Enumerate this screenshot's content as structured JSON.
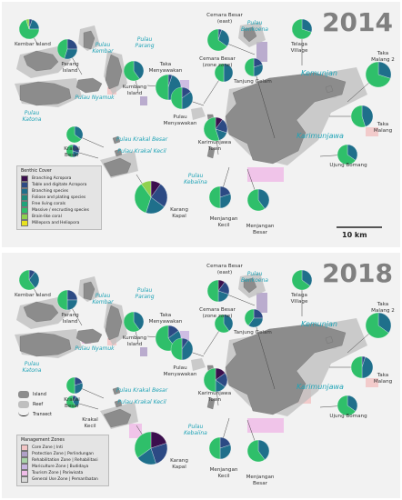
{
  "panels": [
    {
      "year": "2014"
    },
    {
      "year": "2018"
    }
  ],
  "scale_label": "10 km",
  "colors": {
    "branching_acropora": "#3b0f4d",
    "table_digitate_acropora": "#2c4a84",
    "branching_species": "#1f6f8b",
    "foliose_plating": "#1f8a7a",
    "free_living": "#1fa37a",
    "massive_encrusting": "#2fbf6a",
    "brain_like": "#8fd14f",
    "millepora_heliopora": "#e8e21f",
    "land": "#8c8c8c",
    "reef": "#bfbfbf",
    "core_zone": "#f2c4c4",
    "protection_zone": "#b0a0c8",
    "rehabilitation_zone": "#a8d4a8",
    "mariculture_zone": "#c8b4e0",
    "tourism_zone": "#f0bce8",
    "general_use_zone": "#d8d8d8"
  },
  "benthic_legend": {
    "title": "Benthic Cover",
    "items": [
      "Branching Acropora",
      "Table and digitate Acropora",
      "Branching species",
      "Foliose and plating species",
      "Free living corals",
      "Massive / encrusting species",
      "Brain-like coral",
      "Millepora and Heliopora"
    ]
  },
  "map_legend": {
    "items": [
      "Island",
      "Reef",
      "Transect"
    ]
  },
  "zones_legend": {
    "title": "Management Zones",
    "items": [
      "Core Zone | Inti",
      "Protection Zone | Perlindungan",
      "Rehabilitation Zone | Rehabilitasi",
      "Mariculture Zone | Budidaya",
      "Tourism Zone | Pariwisata",
      "General Use Zone | Pemanfaatan"
    ]
  },
  "sites": [
    "Kembar Island",
    "Parang Island",
    "Kumbang Island",
    "Taka Menyawakan",
    "Cemara Besar (east)",
    "Cemara Besar (zone zone)",
    "Pulau Menyawakan",
    "Tanjung Gelam",
    "Telaga Village",
    "Taka Malang 2",
    "Taka Malang",
    "Karimunjawa Town",
    "Krakal Besar",
    "Krakal Kecil",
    "Karang Kapal",
    "Menjangan Kecil",
    "Menjangan Besar",
    "Ujung Bomang"
  ],
  "islands": [
    "Pulau Kembar",
    "Pulau Parang",
    "Pulau Nyamuk",
    "Pulau Katona",
    "Pulau Krakal Besar",
    "Pulau Krakal Kecil",
    "Pulau Kebaiina",
    "Pulau Benkoena",
    "Kemunjan",
    "Karimunjawa"
  ],
  "chart_data": [
    {
      "type": "pie",
      "title": "2014",
      "categories": [
        "Branching Acropora",
        "Table and digitate Acropora",
        "Branching species",
        "Foliose and plating species",
        "Free living corals",
        "Massive / encrusting species",
        "Brain-like coral",
        "Millepora and Heliopora"
      ],
      "pies": [
        {
          "site": "Kembar Island",
          "values": [
            0,
            5,
            20,
            0,
            0,
            70,
            5,
            0
          ]
        },
        {
          "site": "Parang Island",
          "values": [
            0,
            25,
            30,
            0,
            0,
            45,
            0,
            0
          ]
        },
        {
          "site": "Kumbang Island",
          "values": [
            0,
            0,
            40,
            0,
            0,
            60,
            0,
            0
          ]
        },
        {
          "site": "Taka Menyawakan",
          "values": [
            0,
            5,
            45,
            0,
            0,
            50,
            0,
            0
          ]
        },
        {
          "site": "Cemara Besar (east)",
          "values": [
            0,
            5,
            30,
            0,
            0,
            65,
            0,
            0
          ]
        },
        {
          "site": "Cemara Besar (zone zone)",
          "values": [
            0,
            0,
            50,
            0,
            0,
            50,
            0,
            0
          ]
        },
        {
          "site": "Pulau Menyawakan",
          "values": [
            0,
            15,
            35,
            0,
            0,
            50,
            0,
            0
          ]
        },
        {
          "site": "Tanjung Gelam",
          "values": [
            0,
            20,
            30,
            0,
            0,
            50,
            0,
            0
          ]
        },
        {
          "site": "Telaga Village",
          "values": [
            0,
            0,
            30,
            0,
            0,
            70,
            0,
            0
          ]
        },
        {
          "site": "Taka Malang 2",
          "values": [
            0,
            0,
            30,
            0,
            0,
            70,
            0,
            0
          ]
        },
        {
          "site": "Taka Malang",
          "values": [
            0,
            0,
            45,
            0,
            0,
            55,
            0,
            0
          ]
        },
        {
          "site": "Karimunjawa Town",
          "values": [
            10,
            20,
            15,
            0,
            0,
            55,
            0,
            0
          ]
        },
        {
          "site": "Krakal Besar",
          "values": [
            0,
            0,
            35,
            0,
            0,
            65,
            0,
            0
          ]
        },
        {
          "site": "Krakal Kecil",
          "values": [
            0,
            30,
            20,
            0,
            0,
            50,
            0,
            0
          ]
        },
        {
          "site": "Karang Kapal",
          "values": [
            10,
            25,
            20,
            0,
            0,
            35,
            10,
            0
          ]
        },
        {
          "site": "Menjangan Kecil",
          "values": [
            0,
            20,
            30,
            0,
            0,
            50,
            0,
            0
          ]
        },
        {
          "site": "Menjangan Besar",
          "values": [
            0,
            0,
            40,
            0,
            0,
            60,
            0,
            0
          ]
        },
        {
          "site": "Ujung Bomang",
          "values": [
            0,
            0,
            35,
            0,
            0,
            65,
            0,
            0
          ]
        }
      ]
    },
    {
      "type": "pie",
      "title": "2018",
      "categories": [
        "Branching Acropora",
        "Table and digitate Acropora",
        "Branching species",
        "Foliose and plating species",
        "Free living corals",
        "Massive / encrusting species",
        "Brain-like coral",
        "Millepora and Heliopora"
      ],
      "pies": [
        {
          "site": "Kembar Island",
          "values": [
            0,
            10,
            30,
            0,
            0,
            60,
            0,
            0
          ]
        },
        {
          "site": "Parang Island",
          "values": [
            0,
            25,
            25,
            0,
            0,
            50,
            0,
            0
          ]
        },
        {
          "site": "Kumbang Island",
          "values": [
            0,
            0,
            40,
            0,
            0,
            60,
            0,
            0
          ]
        },
        {
          "site": "Taka Menyawakan",
          "values": [
            0,
            15,
            25,
            0,
            0,
            60,
            0,
            0
          ]
        },
        {
          "site": "Cemara Besar (east)",
          "values": [
            10,
            20,
            20,
            0,
            0,
            50,
            0,
            0
          ]
        },
        {
          "site": "Cemara Besar (zone zone)",
          "values": [
            0,
            0,
            40,
            0,
            0,
            60,
            0,
            0
          ]
        },
        {
          "site": "Pulau Menyawakan",
          "values": [
            0,
            10,
            40,
            0,
            0,
            50,
            0,
            0
          ]
        },
        {
          "site": "Tanjung Gelam",
          "values": [
            0,
            25,
            35,
            0,
            0,
            40,
            0,
            0
          ]
        },
        {
          "site": "Telaga Village",
          "values": [
            0,
            0,
            35,
            0,
            0,
            65,
            0,
            0
          ]
        },
        {
          "site": "Taka Malang 2",
          "values": [
            0,
            0,
            35,
            0,
            0,
            65,
            0,
            0
          ]
        },
        {
          "site": "Taka Malang",
          "values": [
            0,
            5,
            45,
            0,
            0,
            50,
            0,
            0
          ]
        },
        {
          "site": "Karimunjawa Town",
          "values": [
            15,
            20,
            15,
            0,
            0,
            50,
            0,
            0
          ]
        },
        {
          "site": "Krakal Besar",
          "values": [
            0,
            20,
            30,
            0,
            0,
            50,
            0,
            0
          ]
        },
        {
          "site": "Krakal Kecil",
          "values": [
            0,
            10,
            30,
            0,
            0,
            60,
            0,
            0
          ]
        },
        {
          "site": "Karang Kapal",
          "values": [
            20,
            25,
            20,
            0,
            0,
            35,
            0,
            0
          ]
        },
        {
          "site": "Menjangan Kecil",
          "values": [
            0,
            20,
            30,
            0,
            0,
            50,
            0,
            0
          ]
        },
        {
          "site": "Menjangan Besar",
          "values": [
            0,
            0,
            40,
            0,
            0,
            60,
            0,
            0
          ]
        },
        {
          "site": "Ujung Bomang",
          "values": [
            0,
            0,
            35,
            0,
            0,
            65,
            0,
            0
          ]
        }
      ]
    }
  ]
}
